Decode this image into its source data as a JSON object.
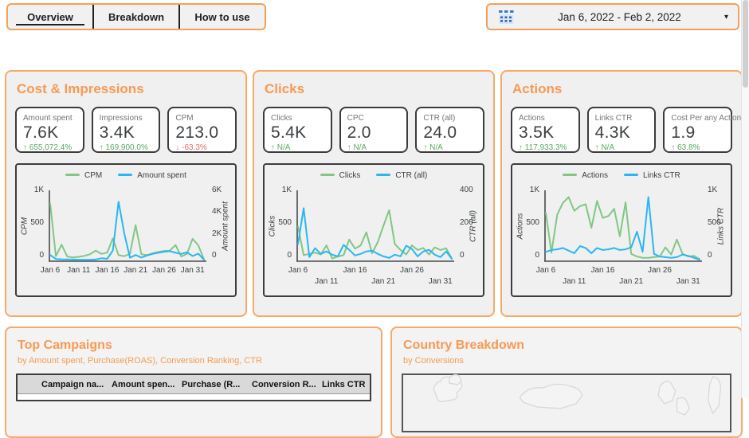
{
  "tabs": [
    {
      "label": "Overview",
      "state": "active"
    },
    {
      "label": "Breakdown",
      "state": ""
    },
    {
      "label": "How to use",
      "state": ""
    }
  ],
  "date_picker": {
    "range": "Jan 6, 2022 - Feb 2, 2022",
    "caret": "▾"
  },
  "colors": {
    "accent_orange": "#f79a52",
    "line_green": "#81c784",
    "line_blue": "#29b6f6",
    "delta_up": "#56ab5b",
    "delta_down": "#e66a5d"
  },
  "panels": [
    {
      "title": "Cost & Impressions",
      "kpis": [
        {
          "label": "Amount spent",
          "value": "7.6K",
          "arrow": "↑",
          "delta": "655,072.4%",
          "dir": "up"
        },
        {
          "label": "Impressions",
          "value": "3.4K",
          "arrow": "↑",
          "delta": "169,900.0%",
          "dir": "up"
        },
        {
          "label": "CPM",
          "value": "213.0",
          "arrow": "↓",
          "delta": "-63.3%",
          "dir": "down"
        }
      ]
    },
    {
      "title": "Clicks",
      "kpis": [
        {
          "label": "Clicks",
          "value": "5.4K",
          "arrow": "↑",
          "delta": "N/A",
          "dir": "up"
        },
        {
          "label": "CPC",
          "value": "2.0",
          "arrow": "↑",
          "delta": "N/A",
          "dir": "up"
        },
        {
          "label": "CTR (all)",
          "value": "24.0",
          "arrow": "↑",
          "delta": "N/A",
          "dir": "up"
        }
      ]
    },
    {
      "title": "Actions",
      "kpis": [
        {
          "label": "Actions",
          "value": "3.5K",
          "arrow": "↑",
          "delta": "117,933.3%",
          "dir": "up"
        },
        {
          "label": "Links CTR",
          "value": "4.3K",
          "arrow": "↑",
          "delta": "N/A",
          "dir": "up"
        },
        {
          "label": "Cost Per any Action",
          "value": "1.9",
          "arrow": "↑",
          "delta": "63.8%",
          "dir": "up"
        }
      ]
    }
  ],
  "chart_data": [
    {
      "type": "line",
      "panel": "Cost & Impressions",
      "x_range": [
        "Jan 6",
        "Feb 2"
      ],
      "x_tick_labels": [
        "Jan 6",
        "Jan 11",
        "Jan 16",
        "Jan 21",
        "Jan 26",
        "Jan 31"
      ],
      "x_tick_indices": [
        0,
        5,
        10,
        15,
        20,
        25
      ],
      "stagger_x_labels": false,
      "ylabel_left": "CPM",
      "ylabel_right": "Amount spent",
      "ylim_left": [
        0,
        1000
      ],
      "ylim_right": [
        0,
        6000
      ],
      "yticks_left": [
        "0",
        "500",
        "1K"
      ],
      "yticks_right": [
        "0",
        "2K",
        "4K",
        "6K"
      ],
      "series": [
        {
          "name": "CPM",
          "axis": "left",
          "color": "#81c784",
          "values": [
            870,
            65,
            240,
            60,
            45,
            55,
            70,
            95,
            150,
            100,
            120,
            335,
            80,
            65,
            100,
            540,
            95,
            80,
            110,
            130,
            145,
            150,
            235,
            60,
            100,
            330,
            230,
            15
          ]
        },
        {
          "name": "Amount spent",
          "axis": "right",
          "color": "#29b6f6",
          "values": [
            500,
            130,
            100,
            90,
            80,
            60,
            50,
            60,
            90,
            200,
            150,
            900,
            5400,
            2500,
            250,
            500,
            260,
            450,
            600,
            700,
            800,
            850,
            700,
            600,
            750,
            400,
            620,
            60
          ]
        }
      ]
    },
    {
      "type": "line",
      "panel": "Clicks",
      "x_range": [
        "Jan 6",
        "Feb 2"
      ],
      "x_tick_labels": [
        "Jan 6",
        "Jan 11",
        "Jan 16",
        "Jan 21",
        "Jan 26",
        "Jan 31"
      ],
      "x_tick_indices": [
        0,
        5,
        10,
        15,
        20,
        25
      ],
      "stagger_x_labels": true,
      "ylabel_left": "Clicks",
      "ylabel_right": "CTR (all)",
      "ylim_left": [
        0,
        1000
      ],
      "ylim_right": [
        0,
        400
      ],
      "yticks_left": [
        "0",
        "500",
        "1K"
      ],
      "yticks_right": [
        "0",
        "200",
        "400"
      ],
      "series": [
        {
          "name": "Clicks",
          "axis": "left",
          "color": "#81c784",
          "values": [
            520,
            80,
            100,
            120,
            90,
            230,
            30,
            60,
            80,
            320,
            180,
            230,
            430,
            110,
            280,
            530,
            770,
            250,
            160,
            90,
            230,
            160,
            190,
            90,
            200,
            160,
            185,
            30
          ]
        },
        {
          "name": "CTR (all)",
          "axis": "right",
          "color": "#29b6f6",
          "values": [
            100,
            320,
            20,
            75,
            40,
            55,
            35,
            25,
            95,
            65,
            30,
            40,
            55,
            60,
            40,
            25,
            15,
            35,
            25,
            90,
            70,
            25,
            55,
            65,
            35,
            20,
            55,
            10
          ]
        }
      ]
    },
    {
      "type": "line",
      "panel": "Actions",
      "x_range": [
        "Jan 6",
        "Feb 2"
      ],
      "x_tick_labels": [
        "Jan 6",
        "Jan 11",
        "Jan 16",
        "Jan 21",
        "Jan 26",
        "Jan 31"
      ],
      "x_tick_indices": [
        0,
        5,
        10,
        15,
        20,
        25
      ],
      "stagger_x_labels": true,
      "ylabel_left": "Actions",
      "ylabel_right": "Links CTR",
      "ylim_left": [
        0,
        1000
      ],
      "ylim_right": [
        0,
        1000
      ],
      "yticks_left": [
        "0",
        "500",
        "1K"
      ],
      "yticks_right": [
        "0",
        "500",
        "1K"
      ],
      "series": [
        {
          "name": "Actions",
          "axis": "left",
          "color": "#81c784",
          "values": [
            730,
            120,
            700,
            880,
            970,
            760,
            830,
            860,
            500,
            910,
            650,
            680,
            790,
            370,
            890,
            100,
            60,
            40,
            40,
            50,
            60,
            200,
            90,
            320,
            100,
            60,
            70,
            20
          ]
        },
        {
          "name": "Links CTR",
          "axis": "right",
          "color": "#29b6f6",
          "values": [
            130,
            160,
            170,
            190,
            150,
            110,
            220,
            190,
            110,
            190,
            160,
            170,
            190,
            160,
            170,
            200,
            440,
            130,
            970,
            100,
            60,
            50,
            40,
            50,
            90,
            70,
            40,
            10
          ]
        }
      ]
    }
  ],
  "top_campaigns": {
    "title": "Top Campaigns",
    "subtitle": "by  Amount spent, Purchase(ROAS), Conversion Ranking, CTR",
    "columns": [
      "Campaign na...",
      "Amount spen...",
      "Purchase (R...",
      "Conversion R...",
      "Links CTR"
    ]
  },
  "country_breakdown": {
    "title": "Country Breakdown",
    "subtitle": "by Conversions"
  }
}
